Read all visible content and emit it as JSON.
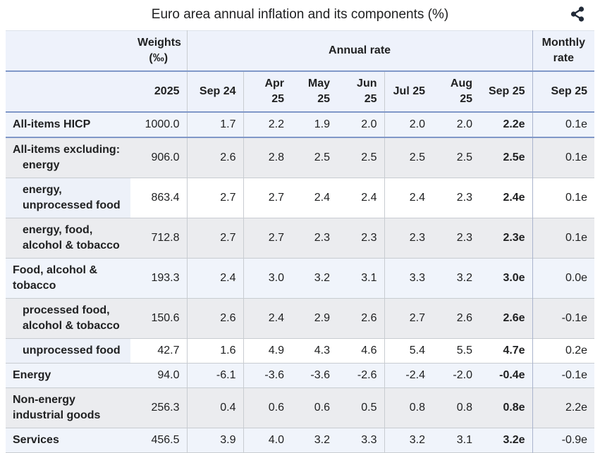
{
  "page": {
    "title": "Euro area annual inflation and its components (%)"
  },
  "colors": {
    "header_bg": "#eef2fb",
    "separator_blue": "#8098c8",
    "grid_gray": "#c8ccd1",
    "row_blue": "#f0f4fb",
    "row_gray": "#ebecef",
    "label_tint": "#edf1f9",
    "text": "#202122",
    "icon": "#222b38"
  },
  "icons": {
    "share": "share-icon"
  },
  "chart_data": {
    "type": "table",
    "title": "Euro area annual inflation and its components (%)",
    "header": {
      "weights": {
        "line1": "Weights",
        "line2": "(‰)",
        "year": "2025"
      },
      "annual_rate": {
        "label": "Annual rate",
        "columns": [
          "Sep 24",
          "Apr 25",
          "May 25",
          "Jun 25",
          "Jul 25",
          "Aug 25",
          "Sep 25"
        ]
      },
      "monthly_rate": {
        "line1": "Monthly",
        "line2": "rate",
        "column": "Sep 25"
      }
    },
    "rows": [
      {
        "label_lines": [
          {
            "text": "All-items HICP",
            "indent": 0
          }
        ],
        "weight": "1000.0",
        "annual": [
          "1.7",
          "2.2",
          "1.9",
          "2.0",
          "2.0",
          "2.0",
          "2.2e"
        ],
        "monthly": "0.1e",
        "tone": "blue"
      },
      {
        "label_lines": [
          {
            "text": "All-items excluding:",
            "indent": 0
          },
          {
            "text": "energy",
            "indent": 1
          }
        ],
        "weight": "906.0",
        "annual": [
          "2.6",
          "2.8",
          "2.5",
          "2.5",
          "2.5",
          "2.5",
          "2.5e"
        ],
        "monthly": "0.1e",
        "tone": "gray"
      },
      {
        "label_lines": [
          {
            "text": "energy,",
            "indent": 1
          },
          {
            "text": "unprocessed food",
            "indent": 1
          }
        ],
        "weight": "863.4",
        "annual": [
          "2.7",
          "2.7",
          "2.4",
          "2.4",
          "2.4",
          "2.3",
          "2.4e"
        ],
        "monthly": "0.1e",
        "tone": "white"
      },
      {
        "label_lines": [
          {
            "text": "energy, food,",
            "indent": 1
          },
          {
            "text": "alcohol & tobacco",
            "indent": 1
          }
        ],
        "weight": "712.8",
        "annual": [
          "2.7",
          "2.7",
          "2.3",
          "2.3",
          "2.3",
          "2.3",
          "2.3e"
        ],
        "monthly": "0.1e",
        "tone": "gray"
      },
      {
        "label_lines": [
          {
            "text": "Food, alcohol &",
            "indent": 0
          },
          {
            "text": "tobacco",
            "indent": 0
          }
        ],
        "weight": "193.3",
        "annual": [
          "2.4",
          "3.0",
          "3.2",
          "3.1",
          "3.3",
          "3.2",
          "3.0e"
        ],
        "monthly": "0.0e",
        "tone": "blue"
      },
      {
        "label_lines": [
          {
            "text": "processed food,",
            "indent": 1
          },
          {
            "text": "alcohol & tobacco",
            "indent": 1
          }
        ],
        "weight": "150.6",
        "annual": [
          "2.6",
          "2.4",
          "2.9",
          "2.6",
          "2.7",
          "2.6",
          "2.6e"
        ],
        "monthly": "-0.1e",
        "tone": "gray"
      },
      {
        "label_lines": [
          {
            "text": "unprocessed food",
            "indent": 1
          }
        ],
        "weight": "42.7",
        "annual": [
          "1.6",
          "4.9",
          "4.3",
          "4.6",
          "5.4",
          "5.5",
          "4.7e"
        ],
        "monthly": "0.2e",
        "tone": "white"
      },
      {
        "label_lines": [
          {
            "text": "Energy",
            "indent": 0
          }
        ],
        "weight": "94.0",
        "annual": [
          "-6.1",
          "-3.6",
          "-3.6",
          "-2.6",
          "-2.4",
          "-2.0",
          "-0.4e"
        ],
        "monthly": "-0.1e",
        "tone": "blue"
      },
      {
        "label_lines": [
          {
            "text": "Non-energy",
            "indent": 0
          },
          {
            "text": "industrial goods",
            "indent": 0
          }
        ],
        "weight": "256.3",
        "annual": [
          "0.4",
          "0.6",
          "0.6",
          "0.5",
          "0.8",
          "0.8",
          "0.8e"
        ],
        "monthly": "2.2e",
        "tone": "gray"
      },
      {
        "label_lines": [
          {
            "text": "Services",
            "indent": 0
          }
        ],
        "weight": "456.5",
        "annual": [
          "3.9",
          "4.0",
          "3.2",
          "3.3",
          "3.2",
          "3.1",
          "3.2e"
        ],
        "monthly": "-0.9e",
        "tone": "blue"
      }
    ]
  }
}
